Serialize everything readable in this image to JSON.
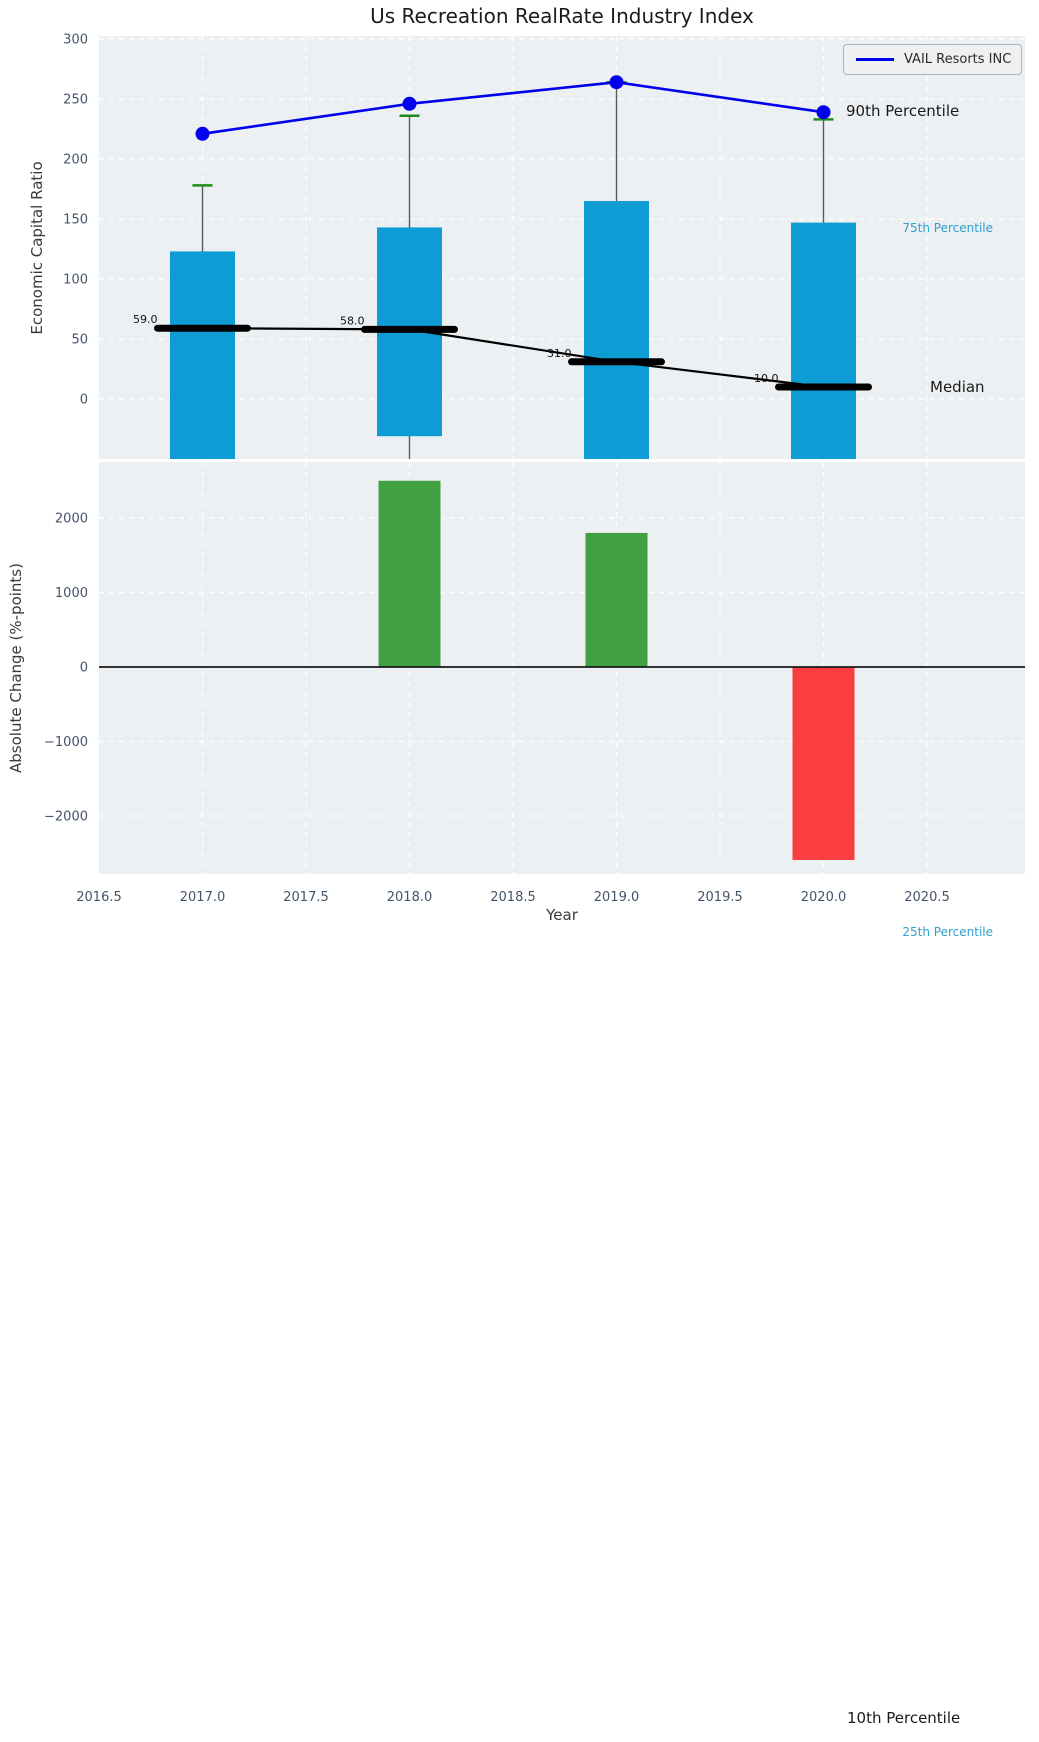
{
  "figure": {
    "title": "Us Recreation RealRate Industry Index",
    "legend": {
      "label": "VAIL Resorts INC"
    },
    "top_axis": {
      "ylabel": "Economic Capital Ratio"
    },
    "bottom_axis": {
      "ylabel": "Absolute Change (%-points)",
      "xlabel": "Year"
    },
    "annotations": {
      "p90": "90th Percentile",
      "p75": "75th Percentile",
      "median_label": "Median",
      "p25": "25th Percentile",
      "p10": "10th Percentile"
    }
  },
  "colors": {
    "box": "#0e9cd4",
    "cap": "#1f8b1f",
    "vail_line": "#0000ee",
    "median_line": "#000000",
    "whisker": "#5a5a5a",
    "bar_up": "#41a041",
    "bar_down": "#fa3d3f",
    "plot_bg": "#edf0f2",
    "grid": "#ffffff",
    "tick_text": "#44546a",
    "zero_line": "#1a1a1a"
  },
  "chart_data": [
    {
      "type": "boxplot+line",
      "title": "Us Recreation RealRate Industry Index",
      "ylabel": "Economic Capital Ratio",
      "ylim": [
        -50,
        302.5
      ],
      "yticks": [
        0,
        50,
        100,
        150,
        200,
        250,
        300
      ],
      "grid": "white dashed, on",
      "legend_position": "upper right",
      "x": [
        2017,
        2018,
        2019,
        2020
      ],
      "series": [
        {
          "name": "VAIL Resorts INC",
          "type": "line+marker",
          "values": [
            221,
            246,
            264,
            239
          ]
        },
        {
          "name": "Median",
          "type": "thick-segment+line",
          "values": [
            59.0,
            58.0,
            31.0,
            10.0
          ],
          "point_labels": [
            "59.0",
            "58.0",
            "31.0",
            "10.0"
          ]
        },
        {
          "name": "75th percentile (box top)",
          "type": "box-top",
          "values": [
            123,
            143,
            165,
            147
          ]
        },
        {
          "name": "25th percentile (box bottom)",
          "type": "box-bottom",
          "values": [
            -50,
            -31,
            -50,
            -50
          ],
          "clipped_at_axis": [
            true,
            false,
            true,
            true
          ]
        },
        {
          "name": "90th percentile (whisker cap)",
          "type": "cap",
          "values": [
            178,
            236,
            264,
            233
          ]
        }
      ]
    },
    {
      "type": "bar",
      "ylabel": "Absolute Change (%-points)",
      "xlabel": "Year",
      "ylim": [
        -2780,
        2750
      ],
      "yticks": [
        -2000,
        -1000,
        0,
        1000,
        2000
      ],
      "zero_line": true,
      "x": [
        2018,
        2019,
        2020
      ],
      "values": [
        2500,
        1800,
        -2590
      ],
      "bar_directions": [
        "up",
        "up",
        "down"
      ],
      "xticks": [
        2016.5,
        2017.0,
        2017.5,
        2018.0,
        2018.5,
        2019.0,
        2019.5,
        2020.0,
        2020.5
      ],
      "xtick_labels": [
        "2016.5",
        "2017.0",
        "2017.5",
        "2018.0",
        "2018.5",
        "2019.0",
        "2019.5",
        "2020.0",
        "2020.5"
      ]
    }
  ]
}
